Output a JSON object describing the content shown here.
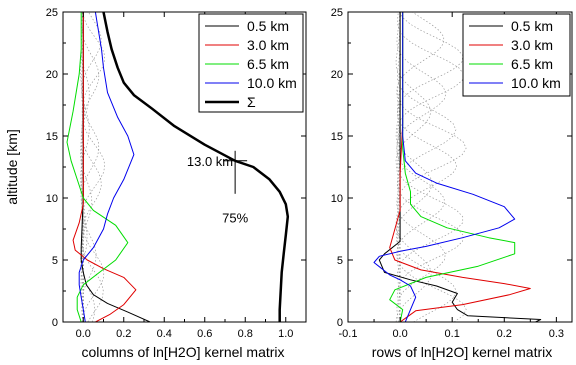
{
  "figure": {
    "ylabel": "altitude [km]"
  },
  "chart_data": [
    {
      "type": "line",
      "xlabel": "columns of ln[H2O] kernel matrix",
      "ylabel": "altitude [km]",
      "xlim": [
        -0.1,
        1.1
      ],
      "ylim": [
        0,
        25
      ],
      "xticks": [
        0.0,
        0.2,
        0.4,
        0.6,
        0.8,
        1.0
      ],
      "xtick_labels": [
        "0.0",
        "0.2",
        "0.4",
        "0.6",
        "0.8",
        "1.0"
      ],
      "yticks": [
        0,
        5,
        10,
        15,
        20,
        25
      ],
      "ytick_labels": [
        "0",
        "5",
        "10",
        "15",
        "20",
        "25"
      ],
      "grid": false,
      "legend_position": "top-right",
      "annotations": [
        {
          "text": "13.0 km",
          "x": 0.75,
          "y": 13.0
        },
        {
          "text": "75%",
          "x": 0.75,
          "y": 9.3
        }
      ],
      "series": [
        {
          "name": "0.5 km",
          "color": "#000000",
          "width": 1.0,
          "points": [
            [
              0.33,
              0
            ],
            [
              0.22,
              0.8
            ],
            [
              0.12,
              1.5
            ],
            [
              0.05,
              2.2
            ],
            [
              0.015,
              3
            ],
            [
              0.0,
              4
            ],
            [
              -0.01,
              5
            ],
            [
              -0.01,
              6
            ],
            [
              -0.005,
              8
            ],
            [
              0.0,
              10
            ],
            [
              0.0,
              13
            ],
            [
              0.0,
              16
            ],
            [
              0.0,
              20
            ],
            [
              0.0,
              25
            ]
          ]
        },
        {
          "name": "3.0 km",
          "color": "#e00000",
          "width": 1.0,
          "points": [
            [
              0.06,
              0
            ],
            [
              0.13,
              0.6
            ],
            [
              0.2,
              1.4
            ],
            [
              0.26,
              2.6
            ],
            [
              0.2,
              3.6
            ],
            [
              0.1,
              4.3
            ],
            [
              0.02,
              5
            ],
            [
              -0.04,
              5.8
            ],
            [
              -0.05,
              6.6
            ],
            [
              -0.02,
              8
            ],
            [
              0.0,
              9.5
            ],
            [
              0.0,
              12
            ],
            [
              0.0,
              16
            ],
            [
              0.0,
              20
            ],
            [
              0.0,
              25
            ]
          ]
        },
        {
          "name": "6.5 km",
          "color": "#00dd00",
          "width": 1.0,
          "points": [
            [
              -0.01,
              0
            ],
            [
              -0.03,
              1
            ],
            [
              -0.03,
              2
            ],
            [
              0.0,
              3
            ],
            [
              0.08,
              4
            ],
            [
              0.16,
              5
            ],
            [
              0.22,
              6.4
            ],
            [
              0.16,
              7.8
            ],
            [
              0.05,
              9
            ],
            [
              0.0,
              10
            ],
            [
              -0.03,
              11.5
            ],
            [
              -0.06,
              13
            ],
            [
              -0.08,
              14.5
            ],
            [
              -0.05,
              17
            ],
            [
              -0.02,
              20
            ],
            [
              -0.01,
              22
            ],
            [
              -0.01,
              25
            ]
          ]
        },
        {
          "name": "10.0 km",
          "color": "#0000ee",
          "width": 1.0,
          "points": [
            [
              0.01,
              0
            ],
            [
              0.0,
              1
            ],
            [
              -0.01,
              2
            ],
            [
              -0.02,
              3
            ],
            [
              -0.02,
              4
            ],
            [
              0.0,
              5
            ],
            [
              0.05,
              6
            ],
            [
              0.1,
              7.5
            ],
            [
              0.12,
              8.7
            ],
            [
              0.15,
              10
            ],
            [
              0.2,
              11.5
            ],
            [
              0.25,
              13.5
            ],
            [
              0.22,
              15
            ],
            [
              0.17,
              16.5
            ],
            [
              0.12,
              18.5
            ],
            [
              0.1,
              20.5
            ],
            [
              0.09,
              22
            ],
            [
              0.07,
              24
            ],
            [
              0.06,
              25
            ]
          ]
        },
        {
          "name": "Σ",
          "color": "#000000",
          "width": 2.5,
          "points": [
            [
              0.97,
              0
            ],
            [
              0.97,
              1
            ],
            [
              0.975,
              2.5
            ],
            [
              0.98,
              4
            ],
            [
              0.99,
              5.5
            ],
            [
              1.0,
              7
            ],
            [
              1.01,
              8.5
            ],
            [
              1.0,
              9.5
            ],
            [
              0.97,
              10.5
            ],
            [
              0.92,
              11.5
            ],
            [
              0.84,
              12.5
            ],
            [
              0.75,
              13.0
            ],
            [
              0.6,
              14.3
            ],
            [
              0.45,
              15.8
            ],
            [
              0.34,
              17.2
            ],
            [
              0.25,
              18.3
            ],
            [
              0.2,
              19.3
            ],
            [
              0.17,
              20.5
            ],
            [
              0.14,
              22
            ],
            [
              0.12,
              23.4
            ],
            [
              0.1,
              25
            ]
          ]
        }
      ]
    },
    {
      "type": "line",
      "xlabel": "rows of ln[H2O] kernel matrix",
      "ylabel": "",
      "xlim": [
        -0.1,
        0.33
      ],
      "ylim": [
        0,
        25
      ],
      "xticks": [
        -0.1,
        0.0,
        0.1,
        0.2,
        0.3
      ],
      "xtick_labels": [
        "-0.1",
        "0.0",
        "0.1",
        "0.2",
        "0.3"
      ],
      "yticks": [
        0,
        5,
        10,
        15,
        20,
        25
      ],
      "ytick_labels": [
        "0",
        "5",
        "10",
        "15",
        "20",
        "25"
      ],
      "grid": false,
      "legend_position": "top-right",
      "series": [
        {
          "name": "0.5 km",
          "color": "#000000",
          "width": 1.0,
          "points": [
            [
              0.26,
              0
            ],
            [
              0.27,
              0.2
            ],
            [
              0.13,
              0.5
            ],
            [
              0.11,
              1
            ],
            [
              0.1,
              1.6
            ],
            [
              0.11,
              2.3
            ],
            [
              0.07,
              2.9
            ],
            [
              0.02,
              3.4
            ],
            [
              -0.03,
              4
            ],
            [
              -0.04,
              5
            ],
            [
              -0.03,
              5.5
            ],
            [
              0.0,
              6.5
            ],
            [
              0.0,
              8
            ],
            [
              0.0,
              10
            ],
            [
              0.0,
              12.5
            ],
            [
              0.0,
              15
            ],
            [
              0.0,
              17
            ],
            [
              0.0,
              20
            ],
            [
              0.0,
              25
            ]
          ]
        },
        {
          "name": "3.0 km",
          "color": "#e00000",
          "width": 1.0,
          "points": [
            [
              0.0,
              0
            ],
            [
              0.01,
              0.3
            ],
            [
              0.03,
              0.9
            ],
            [
              0.12,
              1.4
            ],
            [
              0.21,
              2.2
            ],
            [
              0.25,
              2.7
            ],
            [
              0.2,
              3.1
            ],
            [
              0.12,
              3.6
            ],
            [
              0.04,
              4.2
            ],
            [
              -0.01,
              5
            ],
            [
              -0.02,
              6
            ],
            [
              -0.01,
              7.5
            ],
            [
              0.0,
              9
            ],
            [
              0.0,
              12
            ],
            [
              0.005,
              16
            ],
            [
              0.005,
              20
            ],
            [
              0.005,
              25
            ]
          ]
        },
        {
          "name": "6.5 km",
          "color": "#00dd00",
          "width": 1.0,
          "points": [
            [
              0.0,
              0
            ],
            [
              0.005,
              1
            ],
            [
              -0.02,
              1.8
            ],
            [
              -0.01,
              2.6
            ],
            [
              0.05,
              3.6
            ],
            [
              0.15,
              4.5
            ],
            [
              0.22,
              5.5
            ],
            [
              0.22,
              6.4
            ],
            [
              0.17,
              6.8
            ],
            [
              0.09,
              7.6
            ],
            [
              0.04,
              8.5
            ],
            [
              0.02,
              9.5
            ],
            [
              0.02,
              10.5
            ],
            [
              0.01,
              12
            ],
            [
              0.005,
              14
            ],
            [
              0.005,
              17
            ],
            [
              0.005,
              20
            ],
            [
              0.005,
              25
            ]
          ]
        },
        {
          "name": "10.0 km",
          "color": "#0000ee",
          "width": 1.0,
          "points": [
            [
              0.01,
              0
            ],
            [
              0.02,
              1
            ],
            [
              0.03,
              2
            ],
            [
              0.02,
              2.9
            ],
            [
              0.0,
              3.4
            ],
            [
              -0.02,
              3.8
            ],
            [
              -0.05,
              4.8
            ],
            [
              -0.04,
              5.3
            ],
            [
              0.0,
              5.7
            ],
            [
              0.05,
              6.1
            ],
            [
              0.12,
              6.8
            ],
            [
              0.19,
              7.6
            ],
            [
              0.22,
              8.3
            ],
            [
              0.2,
              9.3
            ],
            [
              0.14,
              10.3
            ],
            [
              0.07,
              11.2
            ],
            [
              0.03,
              12
            ],
            [
              0.01,
              13
            ],
            [
              0.005,
              15
            ],
            [
              0.005,
              20
            ],
            [
              0.005,
              25
            ]
          ]
        }
      ]
    }
  ]
}
